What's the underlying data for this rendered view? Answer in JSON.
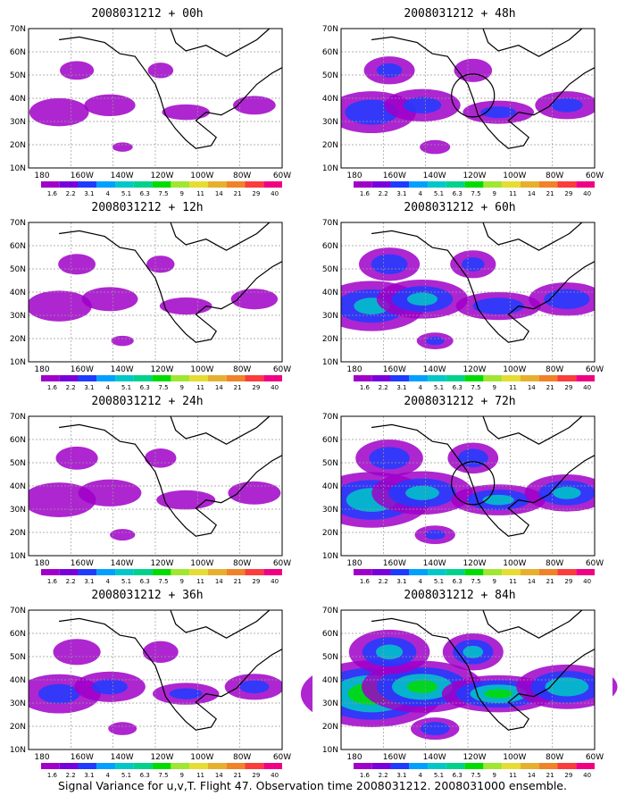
{
  "figure": {
    "caption": "Signal Variance for u,v,T. Flight 47. Observation time 2008031212. 2008031000 ensemble."
  },
  "axes": {
    "lat_ticks": [
      "70N",
      "60N",
      "50N",
      "40N",
      "30N",
      "20N",
      "10N"
    ],
    "lon_ticks": [
      "180",
      "160W",
      "140W",
      "120W",
      "100W",
      "80W",
      "60W"
    ]
  },
  "colorbar": {
    "levels": [
      "1.6",
      "2.2",
      "3.1",
      "4",
      "5.1",
      "6.3",
      "7.5",
      "9",
      "11",
      "14",
      "21",
      "29",
      "40"
    ],
    "colors": [
      "#a000c8",
      "#7800dc",
      "#1e3cff",
      "#00a0ff",
      "#00c8c8",
      "#00d28c",
      "#00dc00",
      "#a0e632",
      "#e6dc32",
      "#e6af2d",
      "#f08228",
      "#fa3c3c",
      "#f00082"
    ]
  },
  "panels": [
    {
      "title": "2008031212 + 00h",
      "intensity": 0.1,
      "circle": false
    },
    {
      "title": "2008031212 + 48h",
      "intensity": 0.35,
      "circle": true
    },
    {
      "title": "2008031212 + 12h",
      "intensity": 0.15,
      "circle": false
    },
    {
      "title": "2008031212 + 60h",
      "intensity": 0.5,
      "circle": false
    },
    {
      "title": "2008031212 + 24h",
      "intensity": 0.22,
      "circle": false
    },
    {
      "title": "2008031212 + 72h",
      "intensity": 0.6,
      "circle": true
    },
    {
      "title": "2008031212 + 36h",
      "intensity": 0.3,
      "circle": false
    },
    {
      "title": "2008031212 + 84h",
      "intensity": 0.8,
      "circle": false
    }
  ]
}
